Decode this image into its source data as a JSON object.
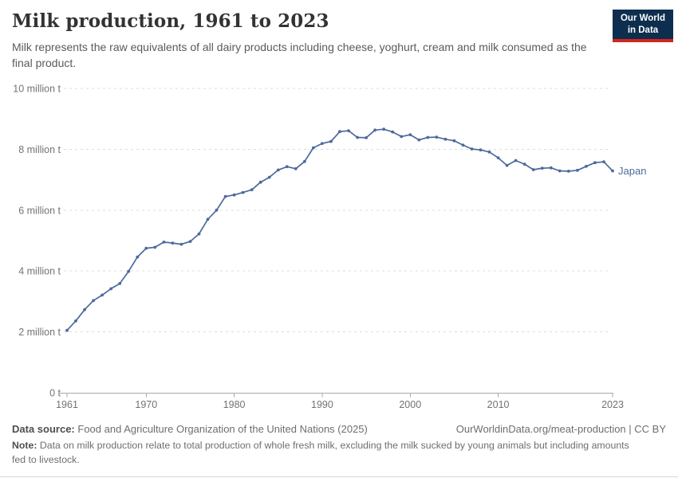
{
  "header": {
    "title": "Milk production, 1961 to 2023",
    "subtitle": "Milk represents the raw equivalents of all dairy products including cheese, yoghurt, cream and milk consumed as the final product.",
    "logo": {
      "line1": "Our World",
      "line2": "in Data",
      "bg_color": "#0d2e4e",
      "bar_color": "#d3271c"
    }
  },
  "chart_data": {
    "type": "line",
    "title": "Milk production, 1961 to 2023",
    "entity_label": "Japan",
    "unit": "million tonnes",
    "line_color": "#4c6a9c",
    "grid": "dashed horizontal",
    "legend_position": "end-of-line label",
    "ylim": [
      0,
      10
    ],
    "xlim": [
      1961,
      2023
    ],
    "x_ticks": [
      1961,
      1970,
      1980,
      1990,
      2000,
      2010,
      2023
    ],
    "y_ticks": [
      {
        "v": 0,
        "label": "0 t"
      },
      {
        "v": 2,
        "label": "2 million t"
      },
      {
        "v": 4,
        "label": "4 million t"
      },
      {
        "v": 6,
        "label": "6 million t"
      },
      {
        "v": 8,
        "label": "8 million t"
      },
      {
        "v": 10,
        "label": "10 million t"
      }
    ],
    "x": [
      1961,
      1962,
      1963,
      1964,
      1965,
      1966,
      1967,
      1968,
      1969,
      1970,
      1971,
      1972,
      1973,
      1974,
      1975,
      1976,
      1977,
      1978,
      1979,
      1980,
      1981,
      1982,
      1983,
      1984,
      1985,
      1986,
      1987,
      1988,
      1989,
      1990,
      1991,
      1992,
      1993,
      1994,
      1995,
      1996,
      1997,
      1998,
      1999,
      2000,
      2001,
      2002,
      2003,
      2004,
      2005,
      2006,
      2007,
      2008,
      2009,
      2010,
      2011,
      2012,
      2013,
      2014,
      2015,
      2016,
      2017,
      2018,
      2019,
      2020,
      2021,
      2022,
      2023
    ],
    "series": [
      {
        "name": "Japan",
        "values": [
          2.05,
          2.36,
          2.73,
          3.03,
          3.21,
          3.42,
          3.59,
          3.99,
          4.46,
          4.75,
          4.78,
          4.95,
          4.92,
          4.88,
          4.97,
          5.22,
          5.7,
          6.0,
          6.45,
          6.5,
          6.58,
          6.67,
          6.92,
          7.08,
          7.32,
          7.43,
          7.36,
          7.6,
          8.05,
          8.19,
          8.26,
          8.58,
          8.61,
          8.39,
          8.38,
          8.63,
          8.66,
          8.57,
          8.42,
          8.48,
          8.31,
          8.39,
          8.4,
          8.33,
          8.28,
          8.14,
          8.01,
          7.98,
          7.91,
          7.72,
          7.47,
          7.63,
          7.51,
          7.33,
          7.38,
          7.39,
          7.29,
          7.28,
          7.31,
          7.44,
          7.56,
          7.59,
          7.29
        ]
      }
    ]
  },
  "footer": {
    "source_label": "Data source:",
    "source_text": "Food and Agriculture Organization of the United Nations (2025)",
    "link_text": "OurWorldinData.org/meat-production | CC BY",
    "note_label": "Note:",
    "note_text": "Data on milk production relate to total production of whole fresh milk, excluding the milk sucked by young animals but including amounts fed to livestock."
  }
}
